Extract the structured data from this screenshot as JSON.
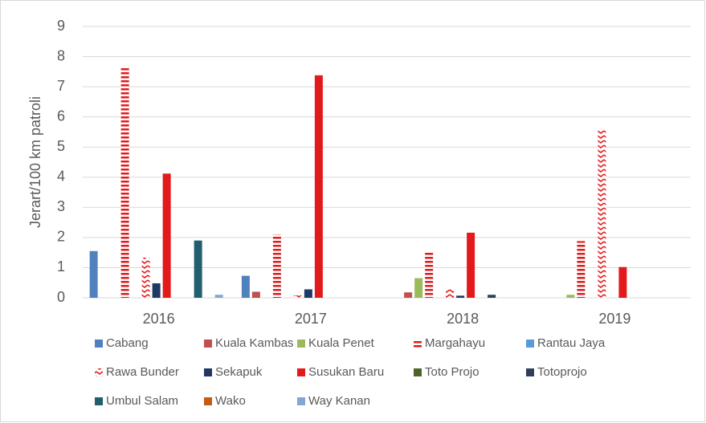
{
  "chart_data": {
    "type": "bar",
    "y_axis_label": "Jerart/100 km patroli",
    "categories": [
      "2016",
      "2017",
      "2018",
      "2019"
    ],
    "ylim": [
      0,
      9
    ],
    "yticks": [
      0,
      1,
      2,
      3,
      4,
      5,
      6,
      7,
      8,
      9
    ],
    "grid": true,
    "legend": "bottom",
    "series": [
      {
        "name": "Cabang",
        "color": "#4f81bd",
        "values": [
          1.55,
          0.73,
          0,
          0
        ]
      },
      {
        "name": "Kuala Kambas",
        "color": "#c0504d",
        "values": [
          0,
          0.2,
          0.18,
          0
        ]
      },
      {
        "name": "Kuala Penet",
        "color": "#9bbb59",
        "values": [
          0,
          0,
          0.65,
          0.1
        ]
      },
      {
        "name": "Margahayu",
        "color": "#e31a1c",
        "pattern": "dash",
        "values": [
          7.65,
          2.1,
          1.52,
          1.88
        ]
      },
      {
        "name": "Rantau Jaya",
        "color": "#5b9bd5",
        "values": [
          0,
          0,
          0,
          0
        ]
      },
      {
        "name": "Rawa Bunder",
        "color": "#e31a1c",
        "pattern": "zigzag",
        "values": [
          1.33,
          0.08,
          0.28,
          5.58
        ]
      },
      {
        "name": "Sekapuk",
        "color": "#1f3864",
        "values": [
          0.48,
          0.28,
          0.07,
          0
        ]
      },
      {
        "name": "Susukan Baru",
        "color": "#e31a1c",
        "values": [
          4.12,
          7.38,
          2.16,
          1.02
        ]
      },
      {
        "name": "Toto Projo",
        "color": "#4f6228",
        "values": [
          0,
          0,
          0,
          0
        ]
      },
      {
        "name": "Totoprojo",
        "color": "#2e3f57",
        "values": [
          0,
          0,
          0.1,
          0
        ]
      },
      {
        "name": "Umbul Salam",
        "color": "#215f6f",
        "values": [
          1.9,
          0,
          0,
          0
        ]
      },
      {
        "name": "Wako",
        "color": "#c55a11",
        "values": [
          0,
          0,
          0,
          0
        ]
      },
      {
        "name": "Way Kanan",
        "color": "#7fa7d8",
        "values": [
          0.1,
          0,
          0,
          0
        ]
      }
    ]
  }
}
